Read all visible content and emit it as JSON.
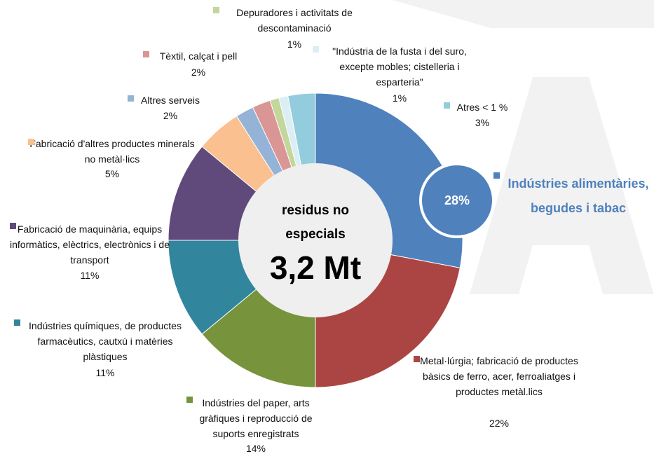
{
  "chart_data": {
    "type": "donut",
    "center_text": "residus no especials",
    "center_total": "3,2 Mt",
    "categories": [
      "Indústries alimentàries, begudes i tabac",
      "Metal·lúrgia; fabricació de productes bàsics de ferro, acer, ferroaliatges i  productes metàl.lics",
      "Indústries del paper, arts gràfiques i reproducció de suports enregistrats",
      "Indústries químiques, de productes farmacèutics, cautxú i matèries plàstiques",
      "Fabricació de maquinària, equips informàtics, elèctrics, electrònics i de transport",
      "Fabricació d'altres productes minerals no metàl·lics",
      "Altres serveis",
      "Tèxtil, calçat i pell",
      "Depuradores i activitats de descontaminació",
      "\"Indústria de la fusta i del suro, excepte mobles; cistelleria i esparteria\"",
      "Atres < 1 %"
    ],
    "values": [
      28,
      22,
      14,
      11,
      11,
      5,
      2,
      2,
      1,
      1,
      3
    ],
    "value_labels": [
      "28%",
      "22%",
      "14%",
      "11%",
      "11%",
      "5%",
      "2%",
      "2%",
      "1%",
      "1%",
      "3%"
    ],
    "colors": [
      "#4f81bd",
      "#ab4543",
      "#77933c",
      "#31859c",
      "#604a7b",
      "#fac090",
      "#95b3d7",
      "#d99694",
      "#c3d69b",
      "#dbeef4",
      "#93cddd"
    ]
  }
}
